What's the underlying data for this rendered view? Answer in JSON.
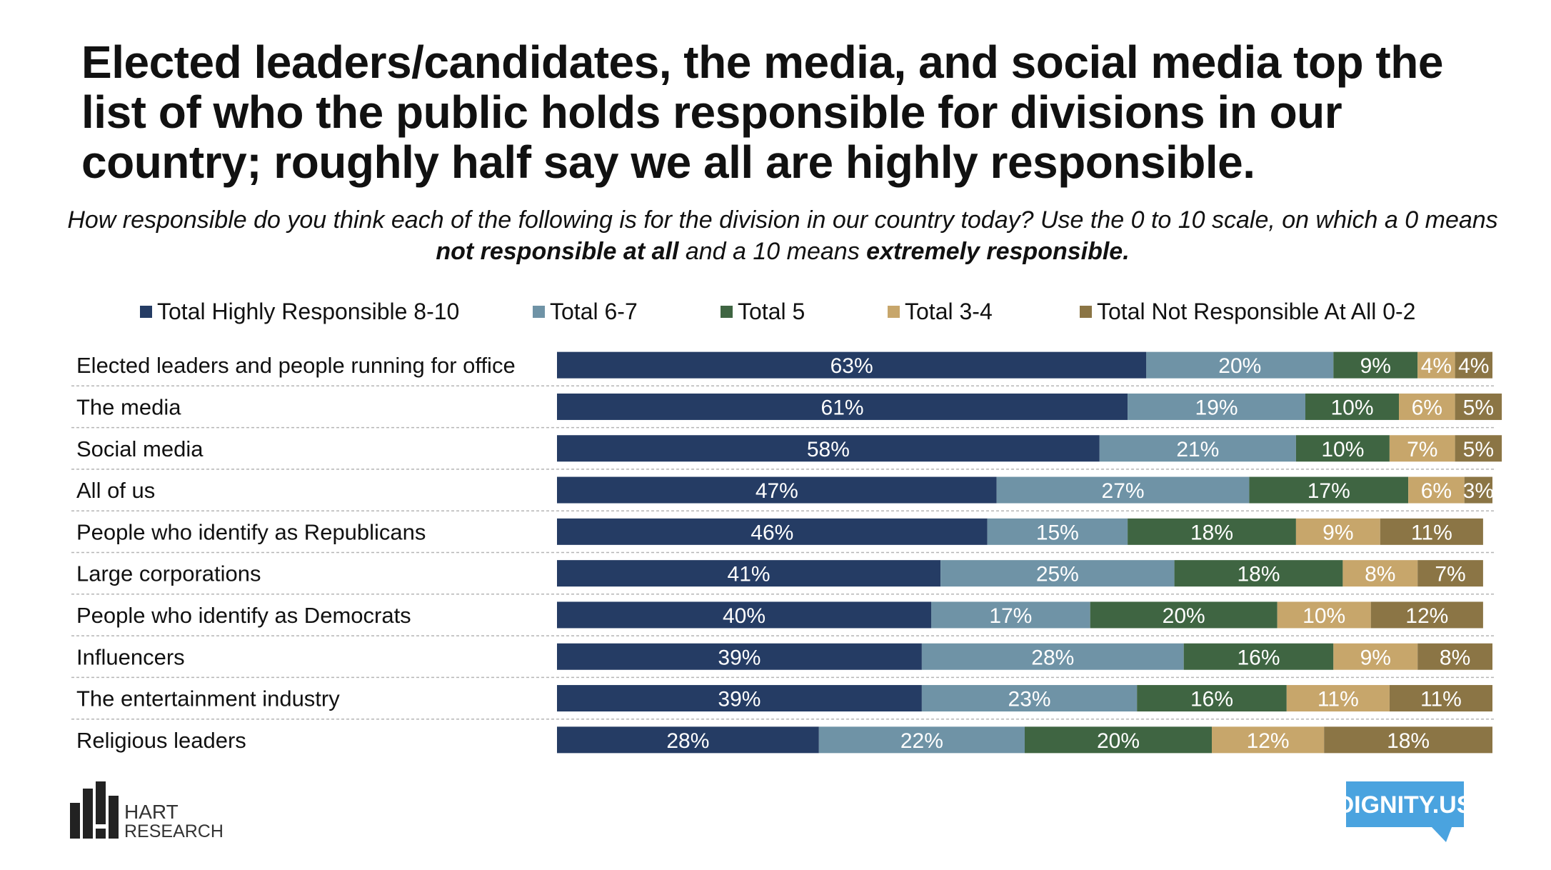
{
  "title": "Elected leaders/candidates, the media, and social media top the list of who the public holds responsible for divisions in our country; roughly half say we all are highly responsible.",
  "subtitle": {
    "part1": "How responsible do you think each of the following is for the division in our country today? Use the 0 to 10 scale, on which a 0 means ",
    "bold1": "not responsible at all",
    "part2": " and a 10 means ",
    "bold2": "extremely responsible."
  },
  "chart_data": {
    "type": "bar",
    "orientation": "horizontal",
    "stacked": true,
    "categories": [
      "Elected leaders and people running for office",
      "The media",
      "Social media",
      "All of us",
      "People who identify as Republicans",
      "Large corporations",
      "People who identify as Democrats",
      "Influencers",
      "The entertainment industry",
      "Religious leaders"
    ],
    "series": [
      {
        "name": "Total Highly Responsible 8-10",
        "color": "#253c64",
        "values": [
          63,
          61,
          58,
          47,
          46,
          41,
          40,
          39,
          39,
          28
        ]
      },
      {
        "name": "Total 6-7",
        "color": "#6f93a6",
        "values": [
          20,
          19,
          21,
          27,
          15,
          25,
          17,
          28,
          23,
          22
        ]
      },
      {
        "name": "Total 5",
        "color": "#3f6542",
        "values": [
          9,
          10,
          10,
          17,
          18,
          18,
          20,
          16,
          16,
          20
        ]
      },
      {
        "name": "Total 3-4",
        "color": "#c7a66b",
        "values": [
          4,
          6,
          7,
          6,
          9,
          8,
          10,
          9,
          11,
          12
        ]
      },
      {
        "name": "Total Not Responsible At All 0-2",
        "color": "#8b7545",
        "values": [
          4,
          5,
          5,
          3,
          11,
          7,
          12,
          8,
          11,
          18
        ]
      }
    ],
    "value_suffix": "%",
    "xlim": [
      0,
      100
    ],
    "legend": "top",
    "grid": false
  },
  "logos": {
    "left_line1": "HART",
    "left_line2": "RESEARCH",
    "right": "DIGNITY.US",
    "right_color": "#4aa3df"
  }
}
